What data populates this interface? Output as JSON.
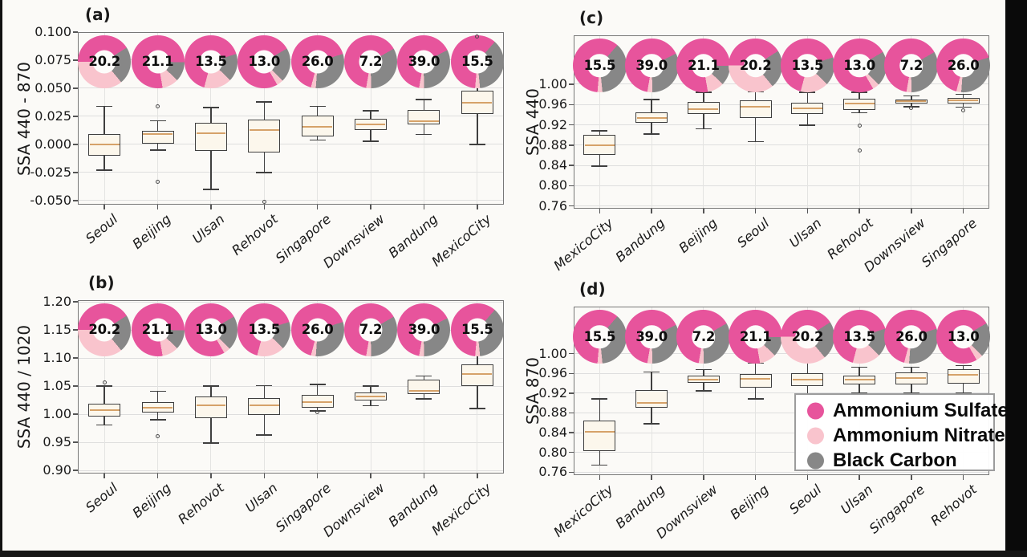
{
  "page": {
    "figure_background": "#fbfaf7",
    "left_edge_bar_color": "#111111",
    "right_edge_bar_color": "#0a0a0a",
    "bottom_edge_bar_color": "#161616"
  },
  "colors": {
    "ammonium_sulfate": "#e7549c",
    "ammonium_nitrate": "#f9c4cd",
    "black_carbon": "#878787",
    "box_fill": "#fcf7ec",
    "box_edge": "#3f3f3f",
    "median": "#d6a269",
    "grid": "#dedede",
    "spine": "#787878"
  },
  "legend": {
    "position": "inside panel (d), lower right",
    "items": [
      {
        "label": "Ammonium Sulfate",
        "color": "#e7549c"
      },
      {
        "label": "Ammonium Nitrate",
        "color": "#f9c4cd"
      },
      {
        "label": "Black Carbon",
        "color": "#878787"
      }
    ]
  },
  "donut_composition_pct": {
    "Seoul": {
      "ammonium_sulfate": 41,
      "ammonium_nitrate": 36,
      "black_carbon": 23,
      "start_angle_deg": 270
    },
    "Beijing": {
      "ammonium_sulfate": 78,
      "ammonium_nitrate": 10,
      "black_carbon": 12,
      "start_angle_deg": 170
    },
    "Ulsan": {
      "ammonium_sulfate": 66,
      "ammonium_nitrate": 17,
      "black_carbon": 17,
      "start_angle_deg": 195
    },
    "Rehovot": {
      "ammonium_sulfate": 75,
      "ammonium_nitrate": 4,
      "black_carbon": 21,
      "start_angle_deg": 150
    },
    "Singapore": {
      "ammonium_sulfate": 66,
      "ammonium_nitrate": 3,
      "black_carbon": 31,
      "start_angle_deg": 195
    },
    "Downsview": {
      "ammonium_sulfate": 64,
      "ammonium_nitrate": 3,
      "black_carbon": 33,
      "start_angle_deg": 190
    },
    "Bandung": {
      "ammonium_sulfate": 65,
      "ammonium_nitrate": 3,
      "black_carbon": 32,
      "start_angle_deg": 190
    },
    "MexicoCity": {
      "ammonium_sulfate": 60,
      "ammonium_nitrate": 3,
      "black_carbon": 37,
      "start_angle_deg": 185
    }
  },
  "chart_data": [
    {
      "type": "box",
      "panel_label": "(a)",
      "ylabel": "SSA 440 - 870",
      "ylim": [
        -0.0536,
        0.1
      ],
      "yticks": [
        0.1,
        0.075,
        0.05,
        0.025,
        0.0,
        -0.025,
        -0.05
      ],
      "ytick_labels": [
        "0.100",
        "0.075",
        "0.050",
        "0.025",
        "0.000",
        "-0.025",
        "-0.050"
      ],
      "grid": true,
      "categories": [
        "Seoul",
        "Beijing",
        "Ulsan",
        "Rehovot",
        "Singapore",
        "Downsview",
        "Bandung",
        "MexicoCity"
      ],
      "donut_labels": [
        "20.2",
        "21.1",
        "13.5",
        "13.0",
        "26.0",
        "7.2",
        "39.0",
        "15.5"
      ],
      "boxes": [
        {
          "whislo": -0.023,
          "q1": -0.01,
          "med": 0.0,
          "q3": 0.009,
          "whishi": 0.034,
          "outliers": []
        },
        {
          "whislo": -0.005,
          "q1": 0.001,
          "med": 0.009,
          "q3": 0.012,
          "whishi": 0.021,
          "outliers": [
            0.034,
            -0.033
          ]
        },
        {
          "whislo": -0.04,
          "q1": -0.006,
          "med": 0.01,
          "q3": 0.019,
          "whishi": 0.033,
          "outliers": []
        },
        {
          "whislo": -0.025,
          "q1": -0.007,
          "med": 0.013,
          "q3": 0.022,
          "whishi": 0.038,
          "outliers": [
            -0.051
          ]
        },
        {
          "whislo": 0.004,
          "q1": 0.007,
          "med": 0.016,
          "q3": 0.026,
          "whishi": 0.034,
          "outliers": []
        },
        {
          "whislo": 0.003,
          "q1": 0.013,
          "med": 0.018,
          "q3": 0.023,
          "whishi": 0.03,
          "outliers": []
        },
        {
          "whislo": 0.009,
          "q1": 0.018,
          "med": 0.021,
          "q3": 0.031,
          "whishi": 0.04,
          "outliers": []
        },
        {
          "whislo": 0.0,
          "q1": 0.027,
          "med": 0.037,
          "q3": 0.048,
          "whishi": 0.052,
          "outliers": [
            0.096
          ]
        }
      ]
    },
    {
      "type": "box",
      "panel_label": "(b)",
      "ylabel": "SSA 440 / 1020",
      "ylim": [
        0.8944,
        1.203
      ],
      "yticks": [
        1.2,
        1.15,
        1.1,
        1.05,
        1.0,
        0.95,
        0.9
      ],
      "ytick_labels": [
        "1.20",
        "1.15",
        "1.10",
        "1.05",
        "1.00",
        "0.95",
        "0.90"
      ],
      "grid": true,
      "categories": [
        "Seoul",
        "Beijing",
        "Rehovot",
        "Ulsan",
        "Singapore",
        "Downsview",
        "Bandung",
        "MexicoCity"
      ],
      "donut_labels": [
        "20.2",
        "21.1",
        "13.0",
        "13.5",
        "26.0",
        "7.2",
        "39.0",
        "15.5"
      ],
      "boxes": [
        {
          "whislo": 0.981,
          "q1": 0.996,
          "med": 1.007,
          "q3": 1.018,
          "whishi": 1.05,
          "outliers": [
            1.056
          ]
        },
        {
          "whislo": 0.99,
          "q1": 1.003,
          "med": 1.011,
          "q3": 1.021,
          "whishi": 1.041,
          "outliers": [
            0.961
          ]
        },
        {
          "whislo": 0.949,
          "q1": 0.993,
          "med": 1.016,
          "q3": 1.032,
          "whishi": 1.05,
          "outliers": []
        },
        {
          "whislo": 0.963,
          "q1": 0.999,
          "med": 1.016,
          "q3": 1.029,
          "whishi": 1.051,
          "outliers": []
        },
        {
          "whislo": 1.006,
          "q1": 1.012,
          "med": 1.022,
          "q3": 1.034,
          "whishi": 1.053,
          "outliers": [
            1.004
          ]
        },
        {
          "whislo": 1.015,
          "q1": 1.024,
          "med": 1.031,
          "q3": 1.038,
          "whishi": 1.05,
          "outliers": []
        },
        {
          "whislo": 1.027,
          "q1": 1.036,
          "med": 1.041,
          "q3": 1.061,
          "whishi": 1.068,
          "outliers": []
        },
        {
          "whislo": 1.01,
          "q1": 1.05,
          "med": 1.071,
          "q3": 1.088,
          "whishi": 1.111,
          "outliers": []
        }
      ]
    },
    {
      "type": "box",
      "panel_label": "(c)",
      "ylabel": "SSA 440",
      "ylim": [
        0.7549,
        1.0964
      ],
      "yticks": [
        1.0,
        0.96,
        0.92,
        0.88,
        0.84,
        0.8,
        0.76
      ],
      "ytick_labels": [
        "1.00",
        "0.96",
        "0.92",
        "0.88",
        "0.84",
        "0.80",
        "0.76"
      ],
      "grid": true,
      "categories": [
        "MexicoCity",
        "Bandung",
        "Beijing",
        "Seoul",
        "Ulsan",
        "Rehovot",
        "Downsview",
        "Singapore"
      ],
      "donut_labels": [
        "15.5",
        "39.0",
        "21.1",
        "20.2",
        "13.5",
        "13.0",
        "7.2",
        "26.0"
      ],
      "boxes": [
        {
          "whislo": 0.839,
          "q1": 0.861,
          "med": 0.88,
          "q3": 0.9,
          "whishi": 0.908,
          "outliers": []
        },
        {
          "whislo": 0.902,
          "q1": 0.924,
          "med": 0.933,
          "q3": 0.945,
          "whishi": 0.97,
          "outliers": []
        },
        {
          "whislo": 0.912,
          "q1": 0.941,
          "med": 0.951,
          "q3": 0.965,
          "whishi": 0.984,
          "outliers": []
        },
        {
          "whislo": 0.887,
          "q1": 0.934,
          "med": 0.955,
          "q3": 0.969,
          "whishi": 0.985,
          "outliers": []
        },
        {
          "whislo": 0.919,
          "q1": 0.941,
          "med": 0.952,
          "q3": 0.963,
          "whishi": 0.984,
          "outliers": []
        },
        {
          "whislo": 0.944,
          "q1": 0.95,
          "med": 0.962,
          "q3": 0.972,
          "whishi": 0.984,
          "outliers": [
            0.919,
            0.87
          ]
        },
        {
          "whislo": 0.956,
          "q1": 0.962,
          "med": 0.966,
          "q3": 0.97,
          "whishi": 0.977,
          "outliers": [
            0.954
          ]
        },
        {
          "whislo": 0.955,
          "q1": 0.962,
          "med": 0.968,
          "q3": 0.973,
          "whishi": 0.98,
          "outliers": [
            0.949
          ]
        }
      ]
    },
    {
      "type": "box",
      "panel_label": "(d)",
      "ylabel": "SSA 870",
      "ylim": [
        0.7539,
        1.0954
      ],
      "yticks": [
        1.0,
        0.96,
        0.92,
        0.88,
        0.84,
        0.8,
        0.76
      ],
      "ytick_labels": [
        "1.00",
        "0.96",
        "0.92",
        "0.88",
        "0.84",
        "0.80",
        "0.76"
      ],
      "grid": true,
      "categories": [
        "MexicoCity",
        "Bandung",
        "Downsview",
        "Beijing",
        "Seoul",
        "Ulsan",
        "Singapore",
        "Rehovot"
      ],
      "donut_labels": [
        "15.5",
        "39.0",
        "7.2",
        "21.1",
        "20.2",
        "13.5",
        "26.0",
        "13.0"
      ],
      "boxes": [
        {
          "whislo": 0.774,
          "q1": 0.803,
          "med": 0.842,
          "q3": 0.864,
          "whishi": 0.908,
          "outliers": []
        },
        {
          "whislo": 0.858,
          "q1": 0.891,
          "med": 0.901,
          "q3": 0.926,
          "whishi": 0.963,
          "outliers": []
        },
        {
          "whislo": 0.925,
          "q1": 0.941,
          "med": 0.948,
          "q3": 0.956,
          "whishi": 0.968,
          "outliers": []
        },
        {
          "whislo": 0.908,
          "q1": 0.931,
          "med": 0.949,
          "q3": 0.958,
          "whishi": 0.981,
          "outliers": []
        },
        {
          "whislo": 0.917,
          "q1": 0.935,
          "med": 0.947,
          "q3": 0.96,
          "whishi": 0.986,
          "outliers": []
        },
        {
          "whislo": 0.92,
          "q1": 0.938,
          "med": 0.948,
          "q3": 0.956,
          "whishi": 0.973,
          "outliers": []
        },
        {
          "whislo": 0.92,
          "q1": 0.938,
          "med": 0.951,
          "q3": 0.962,
          "whishi": 0.973,
          "outliers": []
        },
        {
          "whislo": 0.92,
          "q1": 0.94,
          "med": 0.957,
          "q3": 0.968,
          "whishi": 0.976,
          "outliers": []
        }
      ]
    }
  ]
}
